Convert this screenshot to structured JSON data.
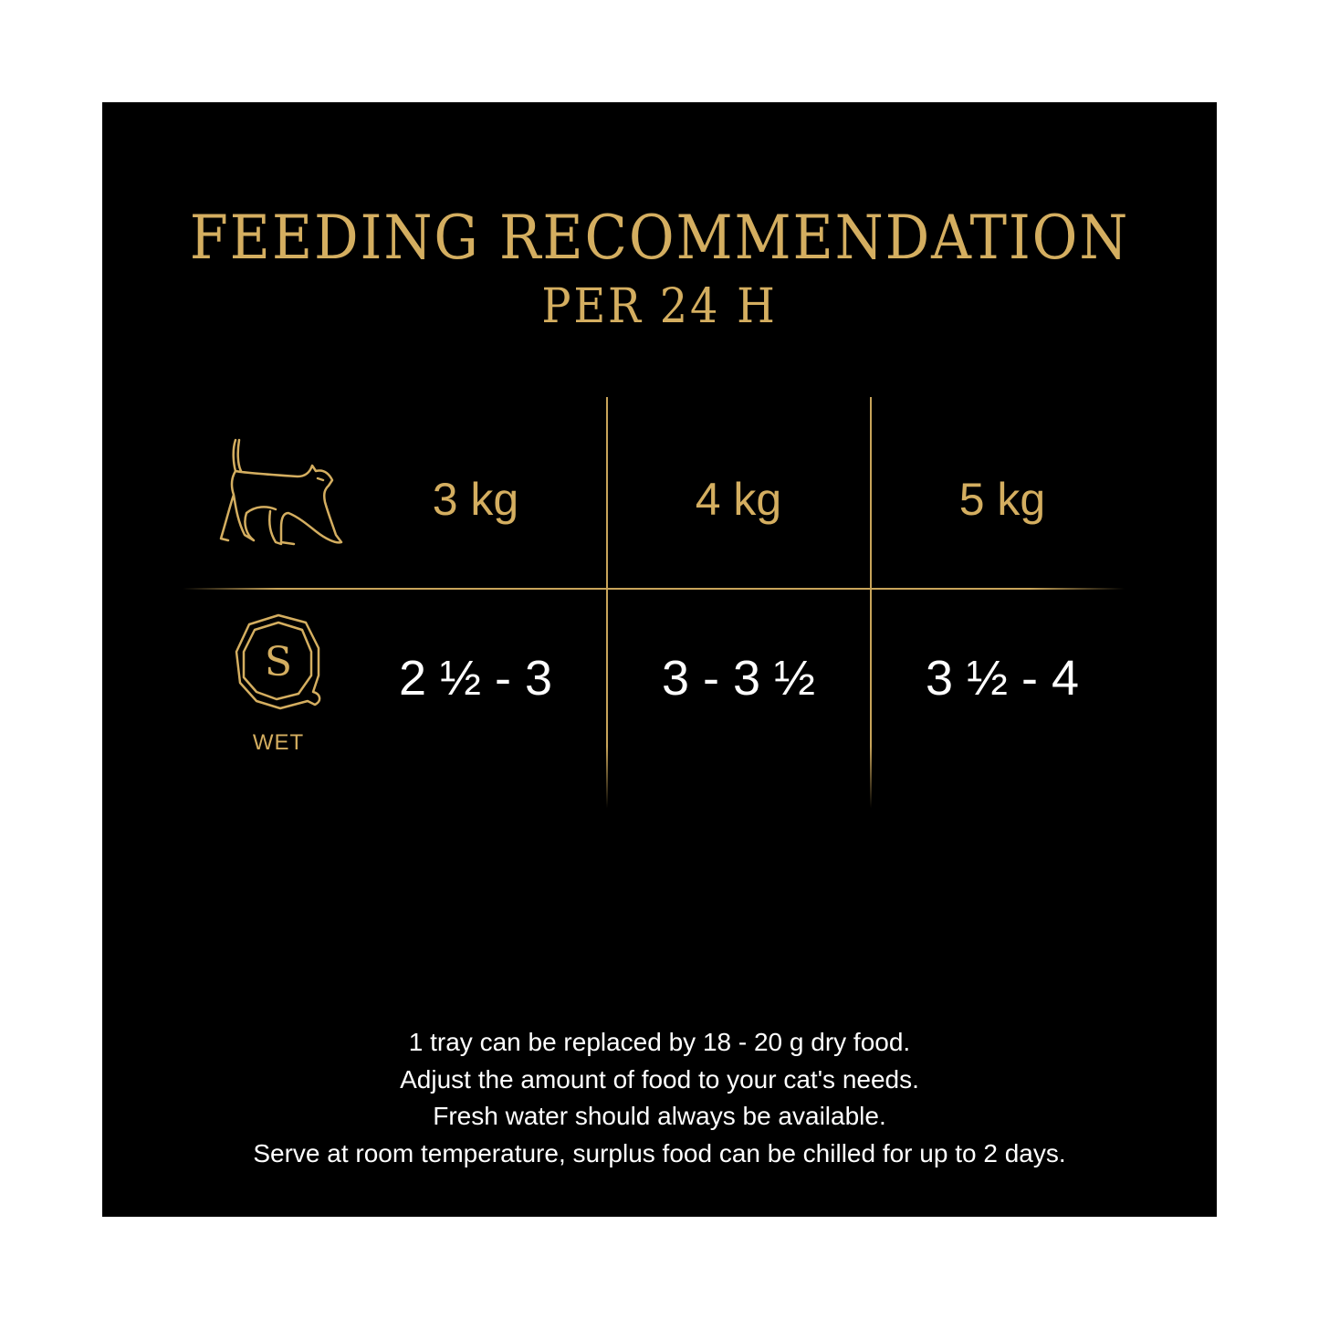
{
  "title": "FEEDING RECOMMENDATION",
  "subtitle": "PER 24 H",
  "accent_color": "#d4ae60",
  "icons": {
    "weight_row": "walking-cat-icon",
    "food_row": "wax-seal-s-icon"
  },
  "food_type_label": "WET",
  "columns": [
    {
      "weight": "3 kg",
      "wet": "2 ½ - 3"
    },
    {
      "weight": "4 kg",
      "wet": "3 - 3 ½"
    },
    {
      "weight": "5 kg",
      "wet": "3 ½ - 4"
    }
  ],
  "notes": [
    "1 tray can be replaced by 18 - 20 g dry food.",
    "Adjust the amount of food to your cat's needs.",
    "Fresh water should always be available.",
    "Serve at room temperature, surplus food can be chilled for up to 2 days."
  ]
}
